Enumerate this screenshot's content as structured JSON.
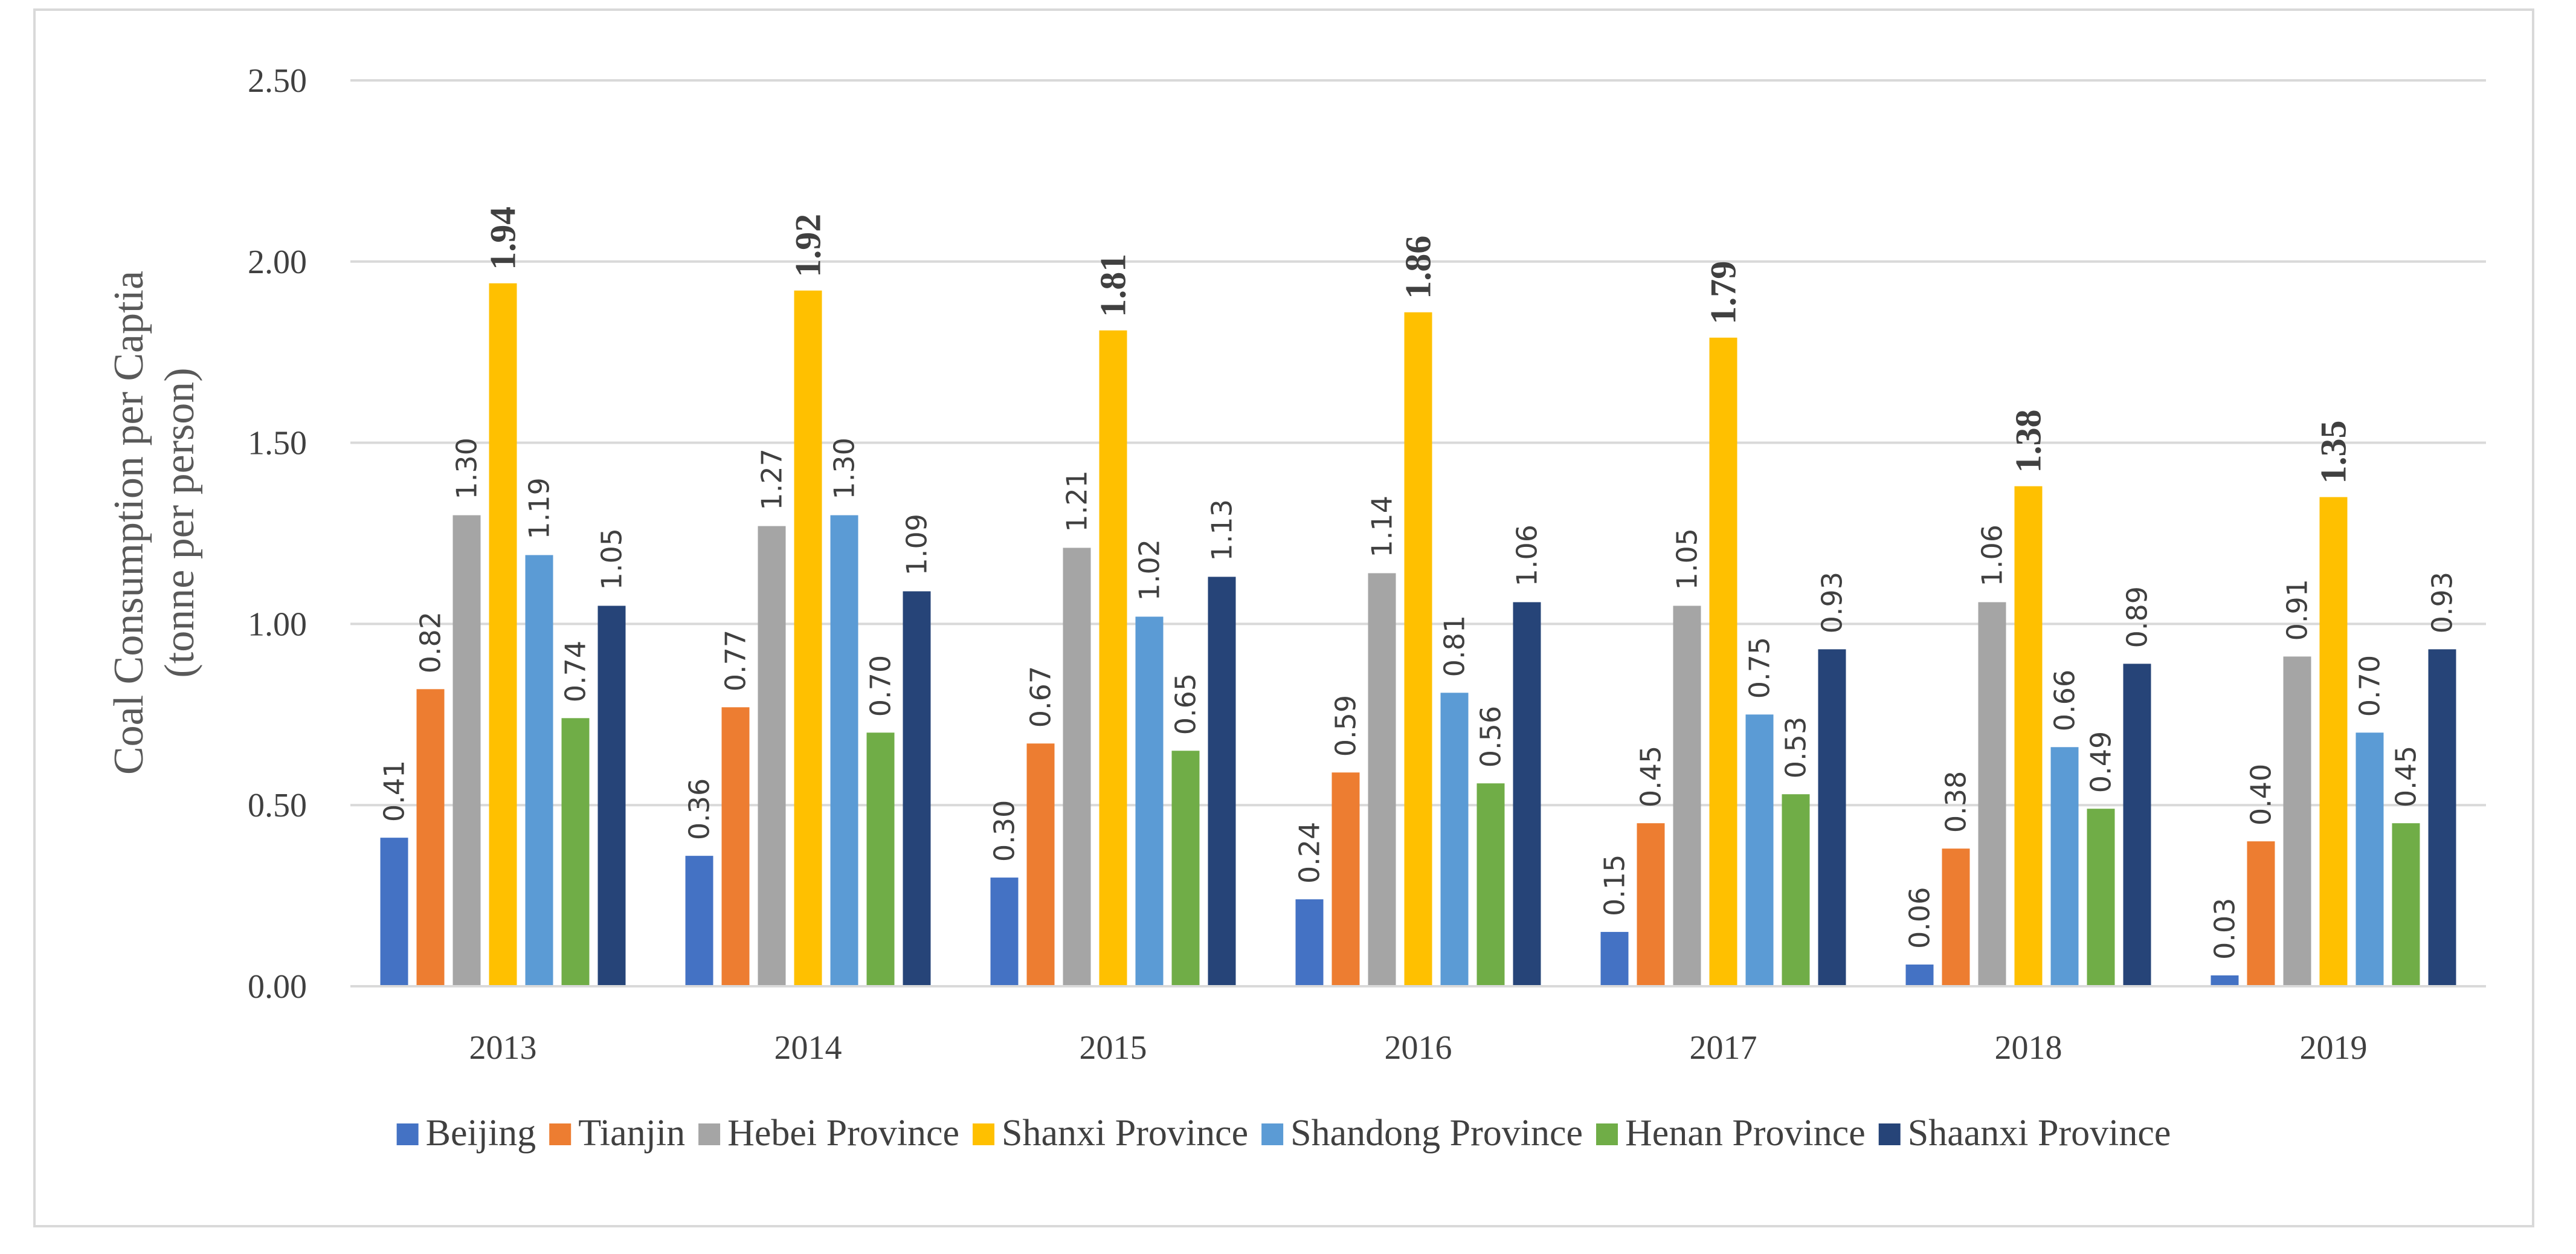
{
  "chart_data": {
    "type": "bar",
    "title": "",
    "xlabel": "",
    "ylabel": "Coal Consumption per Captia",
    "ylabel_sub": "(tonne per person)",
    "ylim": [
      0,
      2.5
    ],
    "yticks": [
      "0.00",
      "0.50",
      "1.00",
      "1.50",
      "2.00",
      "2.50"
    ],
    "grid": "horizontal",
    "legend_position": "bottom",
    "categories": [
      "2013",
      "2014",
      "2015",
      "2016",
      "2017",
      "2018",
      "2019"
    ],
    "series": [
      {
        "name": "Beijing",
        "color": "#4472c4",
        "values": [
          0.41,
          0.36,
          0.3,
          0.24,
          0.15,
          0.06,
          0.03
        ],
        "labels": [
          "0.41",
          "0.36",
          "0.30",
          "0.24",
          "0.15",
          "0.06",
          "0.03"
        ]
      },
      {
        "name": "Tianjin",
        "color": "#ed7d31",
        "values": [
          0.82,
          0.77,
          0.67,
          0.59,
          0.45,
          0.38,
          0.4
        ],
        "labels": [
          "0.82",
          "0.77",
          "0.67",
          "0.59",
          "0.45",
          "0.38",
          "0.40"
        ]
      },
      {
        "name": "Hebei Province",
        "color": "#a5a5a5",
        "values": [
          1.3,
          1.27,
          1.21,
          1.14,
          1.05,
          1.06,
          0.91
        ],
        "labels": [
          "1.30",
          "1.27",
          "1.21",
          "1.14",
          "1.05",
          "1.06",
          "0.91"
        ]
      },
      {
        "name": "Shanxi Province",
        "color": "#ffc000",
        "values": [
          1.94,
          1.92,
          1.81,
          1.86,
          1.79,
          1.38,
          1.35
        ],
        "labels": [
          "1.94",
          "1.92",
          "1.81",
          "1.86",
          "1.79",
          "1.38",
          "1.35"
        ],
        "bold_labels": true
      },
      {
        "name": "Shandong Province",
        "color": "#5b9bd5",
        "values": [
          1.19,
          1.3,
          1.02,
          0.81,
          0.75,
          0.66,
          0.7
        ],
        "labels": [
          "1.19",
          "1.30",
          "1.02",
          "0.81",
          "0.75",
          "0.66",
          "0.70"
        ]
      },
      {
        "name": "Henan Province",
        "color": "#70ad47",
        "values": [
          0.74,
          0.7,
          0.65,
          0.56,
          0.53,
          0.49,
          0.45
        ],
        "labels": [
          "0.74",
          "0.70",
          "0.65",
          "0.56",
          "0.53",
          "0.49",
          "0.45"
        ]
      },
      {
        "name": "Shaanxi Province",
        "color": "#264478",
        "values": [
          1.05,
          1.09,
          1.13,
          1.06,
          0.93,
          0.89,
          0.93
        ],
        "labels": [
          "1.05",
          "1.09",
          "1.13",
          "1.06",
          "0.93",
          "0.89",
          "0.93"
        ]
      }
    ]
  }
}
